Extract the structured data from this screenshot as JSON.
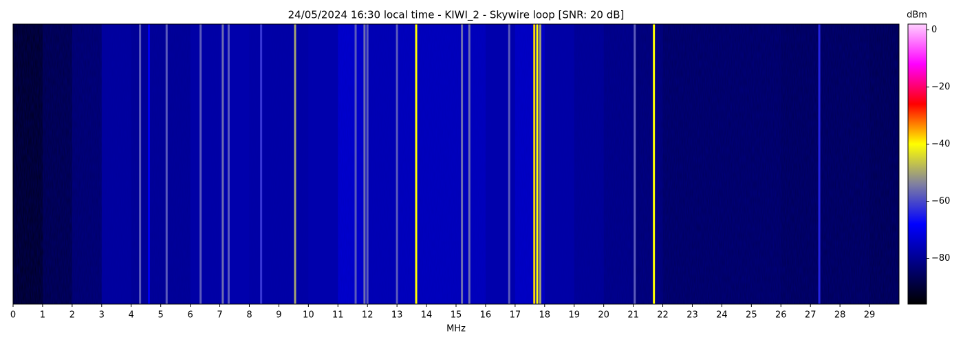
{
  "chart_data": {
    "type": "spectrogram",
    "title": "24/05/2024 16:30 local time - KIWI_2 - Skywire loop [SNR: 20 dB]",
    "x_label": "MHz",
    "colorbar_label": "dBm",
    "xlim": [
      0,
      30
    ],
    "xticks": [
      0,
      1,
      2,
      3,
      4,
      5,
      6,
      7,
      8,
      9,
      10,
      11,
      12,
      13,
      14,
      15,
      16,
      17,
      18,
      19,
      20,
      21,
      22,
      23,
      24,
      25,
      26,
      27,
      28,
      29
    ],
    "clim": [
      -96,
      2
    ],
    "cticks": [
      0,
      {
        "value": -20,
        "label": "−20"
      },
      {
        "value": -40,
        "label": "−40"
      },
      {
        "value": -60,
        "label": "−60"
      },
      {
        "value": -80,
        "label": "−80"
      }
    ],
    "colormap": [
      "#000000",
      "#000080",
      "#0000ff",
      "#8080a0",
      "#ffff00",
      "#ff0000",
      "#ff00ff",
      "#ffd0ff"
    ],
    "x": [
      0.5,
      1.5,
      2.5,
      3.5,
      4.5,
      5.5,
      6.5,
      7.5,
      8.5,
      9.5,
      10.5,
      11.5,
      12.5,
      13.5,
      14.5,
      15.5,
      16.5,
      17.5,
      18.5,
      19.5,
      20.5,
      21.5,
      22.5,
      23.5,
      24.5,
      25.5,
      26.5,
      27.5,
      28.5,
      29.5
    ],
    "values": [
      -93,
      -89,
      -85,
      -79,
      -80,
      -80,
      -78,
      -77,
      -78,
      -78,
      -77,
      -73,
      -76,
      -75,
      -75,
      -75,
      -77,
      -74,
      -78,
      -80,
      -82,
      -84,
      -86,
      -86,
      -86,
      -86,
      -87,
      -87,
      -87,
      -88
    ],
    "carriers_x": [
      4.3,
      4.6,
      5.2,
      6.35,
      7.1,
      7.3,
      8.4,
      9.55,
      11.6,
      11.9,
      12.0,
      13.0,
      13.65,
      15.2,
      15.45,
      16.8,
      17.65,
      17.75,
      17.85,
      21.05,
      21.7,
      27.3
    ],
    "carriers_values": [
      -58,
      -70,
      -58,
      -58,
      -56,
      -58,
      -62,
      -50,
      -58,
      -56,
      -58,
      -58,
      -40,
      -56,
      -56,
      -58,
      -38,
      -40,
      -50,
      -58,
      -40,
      -64
    ]
  }
}
